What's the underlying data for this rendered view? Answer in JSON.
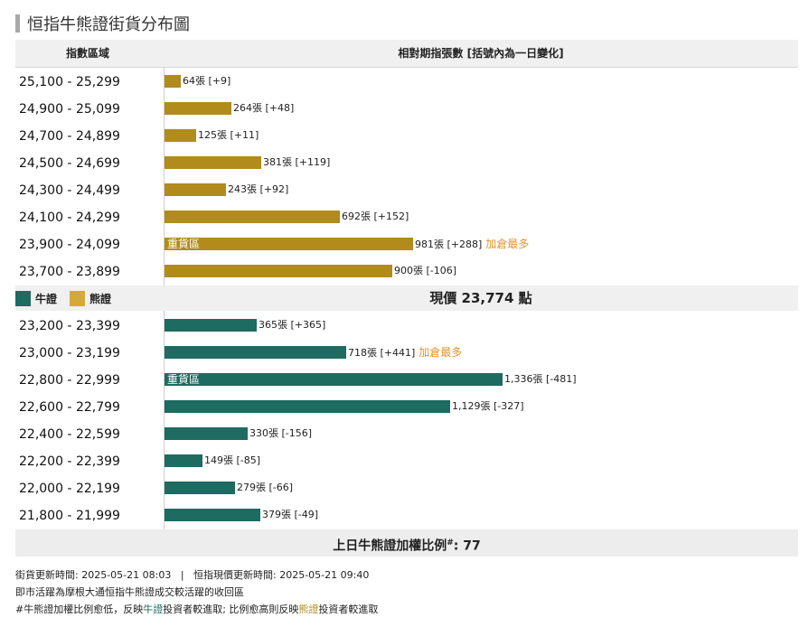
{
  "title": "恒指牛熊證街貨分布圖",
  "header": {
    "col1": "指數區域",
    "col2": "相對期指張數 [括號內為一日變化]"
  },
  "legend": {
    "bull": "牛證",
    "bear": "熊證"
  },
  "current_price": "現價 23,774 點",
  "ratio": {
    "label": "上日牛熊證加權比例",
    "mark": "#",
    "value": ": 77"
  },
  "notes": {
    "line1": "街貨更新時間: 2025-05-21 08:03   |   恒指現價更新時間: 2025-05-21 09:40",
    "line2": "即市活躍為摩根大通恒指牛熊證成交較活躍的收回區",
    "line3_a": "#牛熊證加權比例愈低，反映",
    "line3_bull": "牛證",
    "line3_b": "投資者較進取; 比例愈高則反映",
    "line3_bear": "熊證",
    "line3_c": "投資者較進取"
  },
  "colors": {
    "bull": "#1d6b61",
    "bear": "#b18b1c",
    "note": "#e2962c"
  },
  "chart_data": {
    "type": "bar",
    "orientation": "horizontal",
    "unit": "張",
    "x_max": 1336,
    "series": [
      {
        "name": "熊證",
        "rows": [
          {
            "range": "25,100 - 25,299",
            "value": 64,
            "label": "64張 [+9]",
            "zone": "",
            "note": ""
          },
          {
            "range": "24,900 - 25,099",
            "value": 264,
            "label": "264張 [+48]",
            "zone": "",
            "note": ""
          },
          {
            "range": "24,700 - 24,899",
            "value": 125,
            "label": "125張 [+11]",
            "zone": "",
            "note": ""
          },
          {
            "range": "24,500 - 24,699",
            "value": 381,
            "label": "381張 [+119]",
            "zone": "",
            "note": ""
          },
          {
            "range": "24,300 - 24,499",
            "value": 243,
            "label": "243張 [+92]",
            "zone": "",
            "note": ""
          },
          {
            "range": "24,100 - 24,299",
            "value": 692,
            "label": "692張 [+152]",
            "zone": "",
            "note": ""
          },
          {
            "range": "23,900 - 24,099",
            "value": 981,
            "label": "981張 [+288]",
            "zone": "重貨區",
            "note": "加倉最多"
          },
          {
            "range": "23,700 - 23,899",
            "value": 900,
            "label": "900張 [-106]",
            "zone": "",
            "note": ""
          }
        ]
      },
      {
        "name": "牛證",
        "rows": [
          {
            "range": "23,200 - 23,399",
            "value": 365,
            "label": "365張 [+365]",
            "zone": "",
            "note": ""
          },
          {
            "range": "23,000 - 23,199",
            "value": 718,
            "label": "718張 [+441]",
            "zone": "",
            "note": "加倉最多"
          },
          {
            "range": "22,800 - 22,999",
            "value": 1336,
            "label": "1,336張 [-481]",
            "zone": "重貨區",
            "note": ""
          },
          {
            "range": "22,600 - 22,799",
            "value": 1129,
            "label": "1,129張 [-327]",
            "zone": "",
            "note": ""
          },
          {
            "range": "22,400 - 22,599",
            "value": 330,
            "label": "330張 [-156]",
            "zone": "",
            "note": ""
          },
          {
            "range": "22,200 - 22,399",
            "value": 149,
            "label": "149張 [-85]",
            "zone": "",
            "note": ""
          },
          {
            "range": "22,000 - 22,199",
            "value": 279,
            "label": "279張 [-66]",
            "zone": "",
            "note": ""
          },
          {
            "range": "21,800 - 21,999",
            "value": 379,
            "label": "379張 [-49]",
            "zone": "",
            "note": ""
          }
        ]
      }
    ]
  }
}
